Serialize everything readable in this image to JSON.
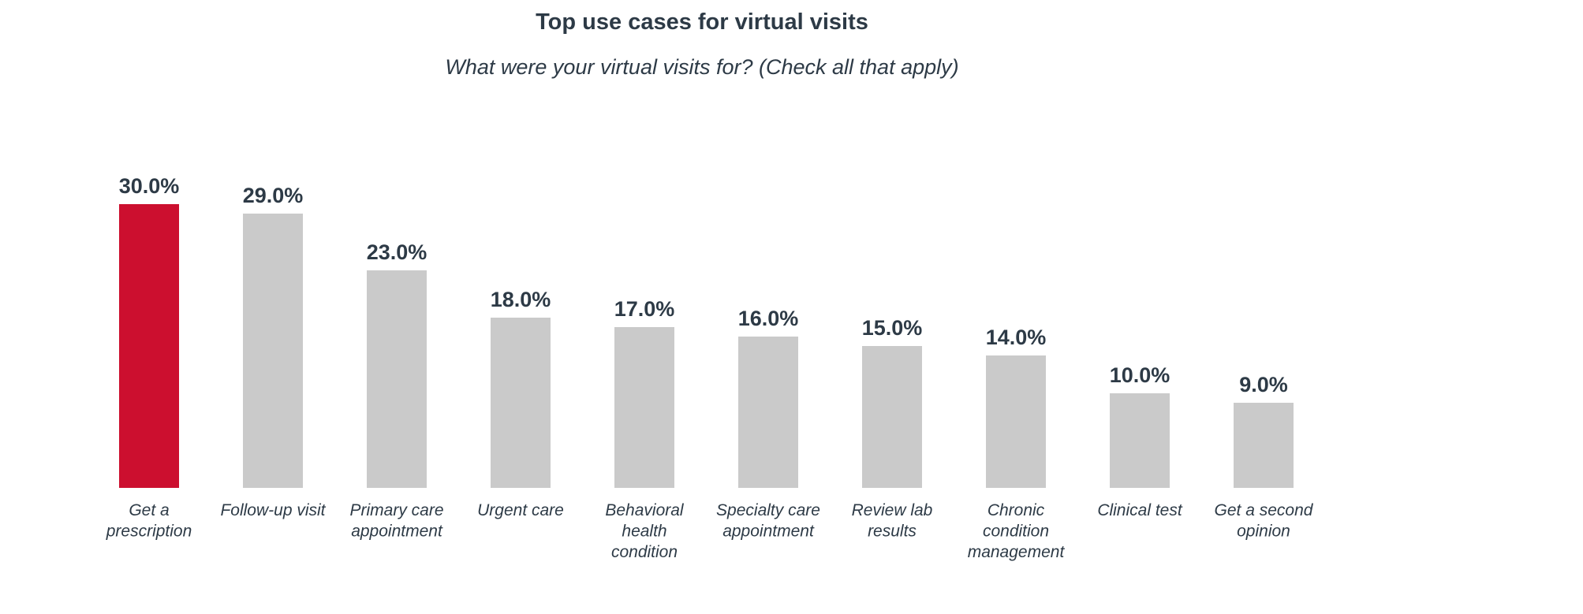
{
  "chart_data": {
    "type": "bar",
    "title": "Top use cases for virtual visits",
    "subtitle": "What were your virtual visits for? (Check all that apply)",
    "categories": [
      [
        "Get a",
        "prescription"
      ],
      [
        "Follow-up visit"
      ],
      [
        "Primary care",
        "appointment"
      ],
      [
        "Urgent care"
      ],
      [
        "Behavioral",
        "health",
        "condition"
      ],
      [
        "Specialty care",
        "appointment"
      ],
      [
        "Review lab",
        "results"
      ],
      [
        "Chronic",
        "condition",
        "management"
      ],
      [
        "Clinical test"
      ],
      [
        "Get a second",
        "opinion"
      ]
    ],
    "values": [
      30.0,
      29.0,
      23.0,
      18.0,
      17.0,
      16.0,
      15.0,
      14.0,
      10.0,
      9.0
    ],
    "value_labels": [
      "30.0%",
      "29.0%",
      "23.0%",
      "18.0%",
      "17.0%",
      "16.0%",
      "15.0%",
      "14.0%",
      "10.0%",
      "9.0%"
    ],
    "highlight_index": 0,
    "colors": {
      "highlight": "#cc0f2f",
      "default": "#cacaca",
      "text": "#2d3a46"
    },
    "xlabel": "",
    "ylabel": "",
    "ylim": [
      0,
      30
    ],
    "grid": false,
    "legend": "none"
  }
}
